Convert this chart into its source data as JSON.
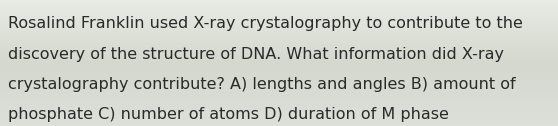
{
  "lines": [
    "Rosalind Franklin used X-ray crystalography to contribute to the",
    "discovery of the structure of DNA. What information did X-ray",
    "crystalography contribute? A) lengths and angles B) amount of",
    "phosphate C) number of atoms D) duration of M phase"
  ],
  "background_top": "#e8ebe4",
  "background_mid": "#d4d8ce",
  "background_bot": "#dddfd9",
  "text_color": "#2a2a2a",
  "font_size": 11.5,
  "figwidth": 5.58,
  "figheight": 1.26,
  "dpi": 100
}
